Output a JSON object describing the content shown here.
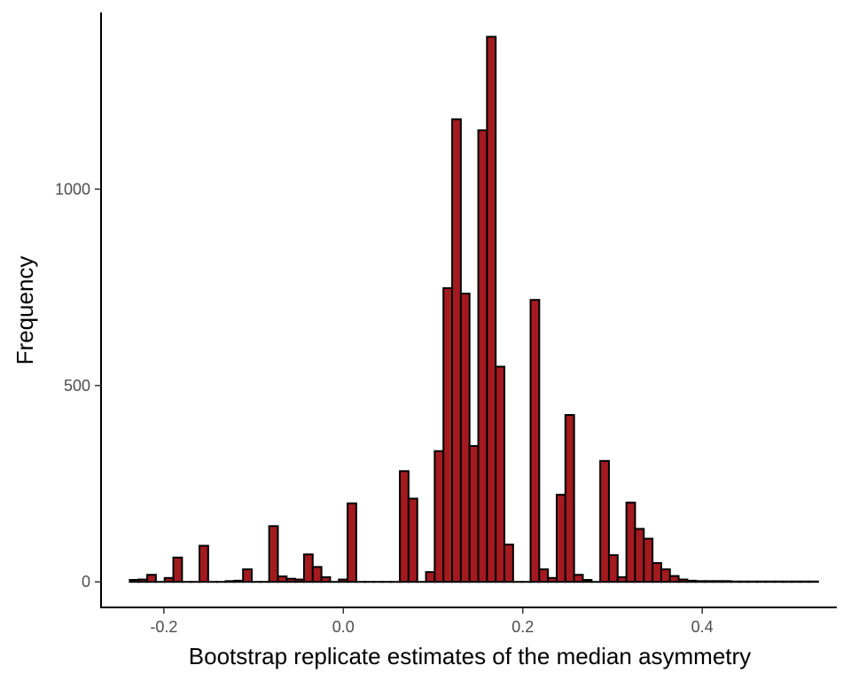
{
  "chart_data": {
    "type": "bar",
    "subtype": "histogram",
    "title": "",
    "xlabel": "Bootstrap replicate estimates of the median asymmetry",
    "ylabel": "Frequency",
    "xlim": [
      -0.27,
      0.55
    ],
    "ylim": [
      -65,
      1450
    ],
    "xticks": [
      -0.2,
      0.0,
      0.2,
      0.4
    ],
    "xtick_labels": [
      "-0.2",
      "0.0",
      "0.2",
      "0.4"
    ],
    "yticks": [
      0,
      500,
      1000
    ],
    "ytick_labels": [
      "0",
      "500",
      "1000"
    ],
    "bin_width": 0.00971,
    "bins_start": -0.238,
    "counts": [
      5,
      6,
      18,
      0,
      10,
      62,
      0,
      0,
      92,
      0,
      0,
      2,
      3,
      32,
      0,
      0,
      142,
      14,
      8,
      6,
      70,
      38,
      12,
      0,
      6,
      200,
      0,
      0,
      0,
      0,
      0,
      282,
      212,
      0,
      25,
      333,
      748,
      1178,
      734,
      346,
      1150,
      1388,
      548,
      95,
      0,
      0,
      718,
      32,
      10,
      222,
      425,
      18,
      5,
      0,
      308,
      68,
      12,
      202,
      135,
      110,
      48,
      32,
      15,
      6,
      3,
      2,
      2,
      2,
      2,
      1,
      1,
      1,
      1,
      1,
      1,
      1,
      1,
      1,
      1
    ],
    "grid": false,
    "legend": "none",
    "bar_fill": "#a31a1f",
    "bar_stroke": "#000000"
  }
}
